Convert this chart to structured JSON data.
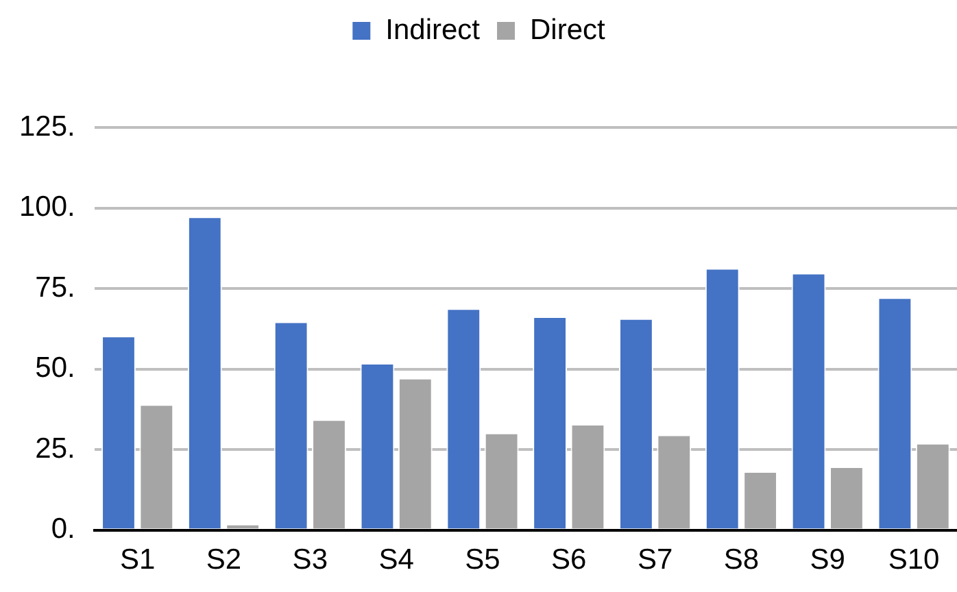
{
  "chart_data": {
    "type": "bar",
    "categories": [
      "S1",
      "S2",
      "S3",
      "S4",
      "S5",
      "S6",
      "S7",
      "S8",
      "S9",
      "S10"
    ],
    "series": [
      {
        "name": "Indirect",
        "color": "#4472c4",
        "values": [
          60.3,
          97.3,
          64.7,
          51.8,
          68.8,
          66.3,
          65.7,
          81.3,
          79.8,
          72.2
        ]
      },
      {
        "name": "Direct",
        "color": "#a5a5a5",
        "values": [
          39.0,
          1.9,
          34.3,
          47.2,
          30.2,
          32.9,
          29.6,
          18.2,
          19.7,
          27.0
        ]
      }
    ],
    "ylim": [
      0,
      125
    ],
    "yticks": [
      {
        "value": 0,
        "label": "0."
      },
      {
        "value": 25,
        "label": "25."
      },
      {
        "value": 50,
        "label": "50."
      },
      {
        "value": 75,
        "label": "75."
      },
      {
        "value": 100,
        "label": "100."
      },
      {
        "value": 125,
        "label": "125."
      }
    ],
    "grid": "y",
    "legend": "top"
  }
}
